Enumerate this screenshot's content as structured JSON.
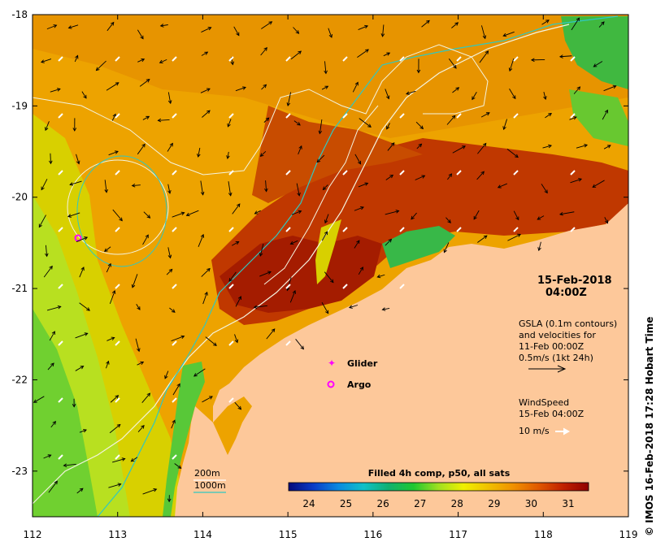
{
  "map": {
    "x_ticks": [
      "112",
      "113",
      "114",
      "115",
      "116",
      "117",
      "118",
      "119"
    ],
    "y_ticks": [
      "-18",
      "-19",
      "-20",
      "-21",
      "-22",
      "-23"
    ],
    "x_range": [
      112,
      119
    ],
    "y_range": [
      -23.5,
      -18
    ]
  },
  "timestamp": {
    "date": "15-Feb-2018",
    "time": "04:00Z"
  },
  "gsla": {
    "line1": "GSLA (0.1m contours)",
    "line2": "and velocities for",
    "line3": "11-Feb 00:00Z",
    "line4": "0.5m/s (1kt 24h)"
  },
  "wind": {
    "line1": "WindSpeed",
    "line2": "15-Feb 04:00Z",
    "line3": "10 m/s"
  },
  "markers": {
    "glider": "Glider",
    "argo": "Argo"
  },
  "isobaths": {
    "a": "200m",
    "b": "1000m"
  },
  "colorbar": {
    "title": "Filled 4h comp, p50, all sats",
    "ticks": [
      "24",
      "25",
      "26",
      "27",
      "28",
      "29",
      "30",
      "31"
    ],
    "colors": [
      "#050a7a",
      "#0a3cc8",
      "#0a8ae0",
      "#10c0c8",
      "#10b070",
      "#20c830",
      "#a0e020",
      "#f0f000",
      "#f0c000",
      "#f09000",
      "#e05800",
      "#c02000",
      "#900000"
    ]
  },
  "credit": "© IMOS 16-Feb-2018 17:28 Hobart Time"
}
